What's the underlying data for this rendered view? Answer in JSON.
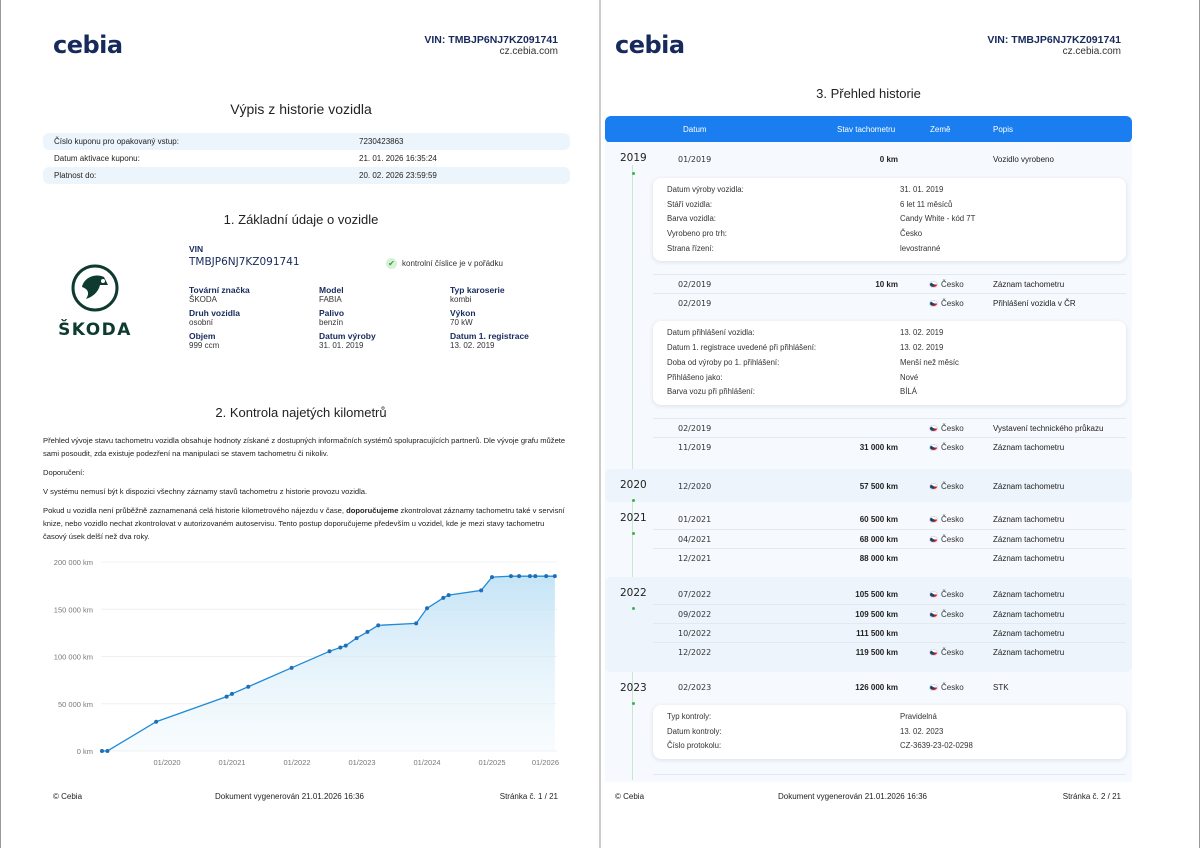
{
  "header": {
    "logo": "cebia",
    "vin": "VIN: TMBJP6NJ7KZ091741",
    "url": "cz.cebia.com"
  },
  "page1": {
    "title": "Výpis z historie vozidla",
    "coupon": [
      {
        "label": "Číslo kuponu pro opakovaný vstup:",
        "value": "7230423863"
      },
      {
        "label": "Datum aktivace kuponu:",
        "value": "21. 01. 2026 16:35:24"
      },
      {
        "label": "Platnost do:",
        "value": "20. 02. 2026 23:59:59"
      }
    ],
    "section1": "1. Základní údaje o vozidle",
    "brand_logo": "ŠKODA",
    "vin_label": "VIN",
    "vin": "TMBJP6NJ7KZ091741",
    "vin_check": "kontrolní číslice je v pořádku",
    "fields": [
      {
        "label": "Tovární značka",
        "value": "ŠKODA"
      },
      {
        "label": "Model",
        "value": "FABIA"
      },
      {
        "label": "Typ karoserie",
        "value": "kombi"
      },
      {
        "label": "Druh vozidla",
        "value": "osobní"
      },
      {
        "label": "Palivo",
        "value": "benzín"
      },
      {
        "label": "Výkon",
        "value": "70 kW"
      },
      {
        "label": "Objem",
        "value": "999 ccm"
      },
      {
        "label": "Datum výroby",
        "value": "31. 01. 2019"
      },
      {
        "label": "Datum 1. registrace",
        "value": "13. 02. 2019"
      }
    ],
    "section2": "2. Kontrola najetých kilometrů",
    "p1": "Přehled vývoje stavu tachometru vozidla obsahuje hodnoty získané z dostupných informačních systémů spolupracujících partnerů. Dle vývoje grafu můžete sami posoudit, zda existuje podezření na manipulaci se stavem tachometru či nikoliv.",
    "p2": "Doporučení:",
    "p3": "V systému nemusí být k dispozici všechny záznamy stavů tachometru z historie provozu vozidla.",
    "p4a": "Pokud u vozidla není průběžně zaznamenaná celá historie kilometrového nájezdu v čase, ",
    "p4b": "doporučujeme",
    "p4c": " zkontrolovat záznamy tachometru také v servisní knize, nebo vozidlo nechat zkontrolovat v autorizovaném autoservisu. Tento postup doporučujeme především u vozidel, kde je mezi stavy tachometru časový úsek delší než dva roky.",
    "footer": {
      "left": "© Cebia",
      "center": "Dokument vygenerován 21.01.2026 16:36",
      "right": "Stránka č. 1 / 21"
    }
  },
  "chart_data": {
    "type": "area",
    "title": "",
    "xlabel": "",
    "ylabel": "",
    "ylim": [
      0,
      200000
    ],
    "yticks": [
      "0 km",
      "50 000 km",
      "100 000 km",
      "150 000 km",
      "200 000 km"
    ],
    "ytick_values": [
      0,
      50000,
      100000,
      150000,
      200000
    ],
    "xticks": [
      "01/2020",
      "01/2021",
      "01/2022",
      "01/2023",
      "01/2024",
      "01/2025",
      "01/2026"
    ],
    "xtick_months": [
      12,
      24,
      36,
      48,
      60,
      72,
      84
    ],
    "xlim_months": [
      0,
      84
    ],
    "points_note": "month index since 01/2019",
    "points": [
      [
        0,
        0
      ],
      [
        1,
        10
      ],
      [
        10,
        31000
      ],
      [
        23,
        57500
      ],
      [
        24,
        60500
      ],
      [
        27,
        68000
      ],
      [
        35,
        88000
      ],
      [
        42,
        105500
      ],
      [
        44,
        109500
      ],
      [
        45,
        111500
      ],
      [
        47,
        119500
      ],
      [
        49,
        126000
      ],
      [
        51,
        133000
      ],
      [
        58,
        135000
      ],
      [
        60,
        151000
      ],
      [
        63,
        162000
      ],
      [
        64,
        165000
      ],
      [
        70,
        170000
      ],
      [
        72,
        184000
      ],
      [
        75.5,
        185000
      ],
      [
        77,
        185000
      ],
      [
        79,
        185000
      ],
      [
        80,
        185000
      ],
      [
        82,
        185000
      ],
      [
        83.6,
        185000
      ]
    ],
    "color": "#1f8ad6",
    "grid": true
  },
  "page2": {
    "title": "3. Přehled historie",
    "columns": {
      "date": "Datum",
      "km": "Stav tachometru",
      "country": "Země",
      "desc": "Popis"
    },
    "groups": [
      {
        "year": "2019",
        "alt": false,
        "items": [
          {
            "date": "01/2019",
            "km": "0 km",
            "country": "",
            "desc": "Vozidlo vyrobeno",
            "card": [
              [
                "Datum výroby vozidla:",
                "31. 01. 2019"
              ],
              [
                "Stáří vozidla:",
                "6 let 11 měsíců"
              ],
              [
                "Barva vozidla:",
                "Candy White - kód 7T"
              ],
              [
                "Vyrobeno pro trh:",
                "Česko"
              ],
              [
                "Strana řízení:",
                "levostranné"
              ]
            ]
          },
          {
            "date": "02/2019",
            "km": "10 km",
            "country": "Česko",
            "desc": "Záznam tachometru"
          },
          {
            "date": "02/2019",
            "km": "",
            "country": "Česko",
            "desc": "Přihlášení vozidla v ČR",
            "card": [
              [
                "Datum přihlášení vozidla:",
                "13. 02. 2019"
              ],
              [
                "Datum 1. registrace uvedené při přihlášení:",
                "13. 02. 2019"
              ],
              [
                "Doba od výroby po 1. přihlášení:",
                "Menší než měsíc"
              ],
              [
                "Přihlášeno jako:",
                "Nové"
              ],
              [
                "Barva vozu při přihlášení:",
                "BÍLÁ"
              ]
            ]
          },
          {
            "date": "02/2019",
            "km": "",
            "country": "Česko",
            "desc": "Vystavení technického průkazu"
          },
          {
            "date": "11/2019",
            "km": "31 000 km",
            "country": "Česko",
            "desc": "Záznam tachometru"
          }
        ]
      },
      {
        "year": "2020",
        "alt": true,
        "items": [
          {
            "date": "12/2020",
            "km": "57 500 km",
            "country": "Česko",
            "desc": "Záznam tachometru"
          }
        ]
      },
      {
        "year": "2021",
        "alt": false,
        "items": [
          {
            "date": "01/2021",
            "km": "60 500 km",
            "country": "Česko",
            "desc": "Záznam tachometru"
          },
          {
            "date": "04/2021",
            "km": "68 000 km",
            "country": "Česko",
            "desc": "Záznam tachometru"
          },
          {
            "date": "12/2021",
            "km": "88 000 km",
            "country": "",
            "desc": "Záznam tachometru"
          }
        ]
      },
      {
        "year": "2022",
        "alt": true,
        "items": [
          {
            "date": "07/2022",
            "km": "105 500 km",
            "country": "Česko",
            "desc": "Záznam tachometru"
          },
          {
            "date": "09/2022",
            "km": "109 500 km",
            "country": "Česko",
            "desc": "Záznam tachometru"
          },
          {
            "date": "10/2022",
            "km": "111 500 km",
            "country": "",
            "desc": "Záznam tachometru"
          },
          {
            "date": "12/2022",
            "km": "119 500 km",
            "country": "Česko",
            "desc": "Záznam tachometru"
          }
        ]
      },
      {
        "year": "2023",
        "alt": false,
        "items": [
          {
            "date": "02/2023",
            "km": "126 000 km",
            "country": "Česko",
            "desc": "STK",
            "card": [
              [
                "Typ kontroly:",
                "Pravidelná"
              ],
              [
                "Datum kontroly:",
                "13. 02. 2023"
              ],
              [
                "Číslo protokolu:",
                "CZ-3639-23-02-0298"
              ]
            ]
          }
        ]
      }
    ],
    "footer": {
      "left": "© Cebia",
      "center": "Dokument vygenerován 21.01.2026 16:36",
      "right": "Stránka č. 2 / 21"
    }
  }
}
